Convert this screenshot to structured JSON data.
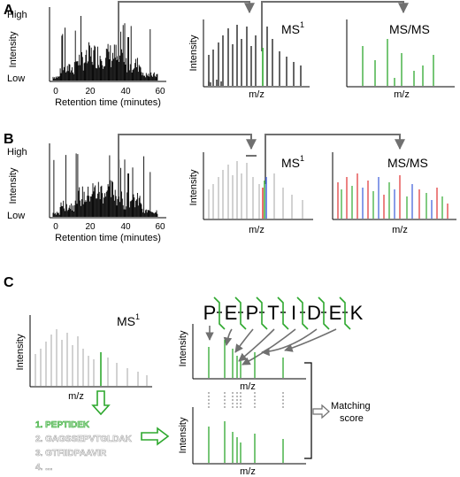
{
  "colors": {
    "axis": "#000000",
    "arrow": "#707070",
    "black_peak": "#000000",
    "grey_peak": "#b4b4b4",
    "green": "#2ea82e",
    "light_green": "#9fd99f",
    "red": "#e03030",
    "blue": "#3a5ad8",
    "list_grey": "#a8a8a8"
  },
  "panelA": {
    "letter": "A",
    "chromatogram": {
      "y_high": "High",
      "y_low": "Low",
      "y_label": "Intensity",
      "x_label": "Retention time (minutes)",
      "x_ticks": [
        "0",
        "20",
        "40",
        "60"
      ]
    },
    "ms1": {
      "title": "MS",
      "sup": "1",
      "x_label": "m/z",
      "y_label": "Intensity"
    },
    "msms": {
      "title": "MS/MS",
      "x_label": "m/z"
    }
  },
  "panelB": {
    "letter": "B",
    "chromatogram": {
      "y_high": "High",
      "y_low": "Low",
      "y_label": "Intensity",
      "x_label": "Retention time (minutes)",
      "x_ticks": [
        "0",
        "20",
        "40",
        "60"
      ]
    },
    "ms1": {
      "title": "MS",
      "sup": "1",
      "x_label": "m/z",
      "y_label": "Intensity"
    },
    "msms": {
      "title": "MS/MS",
      "x_label": "m/z"
    }
  },
  "panelC": {
    "letter": "C",
    "ms1": {
      "title": "MS",
      "sup": "1",
      "x_label": "m/z",
      "y_label": "Intensity"
    },
    "candidates": [
      "1. PEPTIDEK",
      "2. GAGSSEPVTGLDAK",
      "3. GTFIIDPAAVIR",
      "4. ..."
    ],
    "peptide": [
      "P",
      "E",
      "P",
      "T",
      "I",
      "D",
      "E",
      "K"
    ],
    "experimental": {
      "y_label": "Intensity",
      "x_label": "m/z"
    },
    "theoretical": {
      "y_label": "Intensity",
      "x_label": "m/z"
    },
    "matching_line1": "Matching",
    "matching_line2": "score"
  }
}
